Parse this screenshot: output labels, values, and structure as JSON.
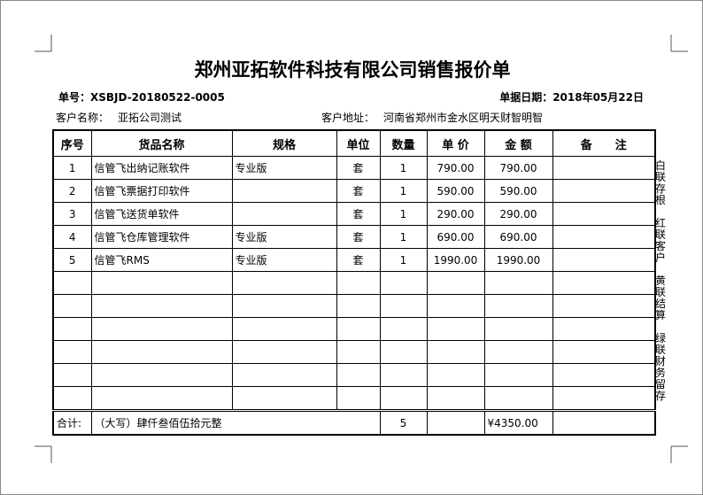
{
  "header": {
    "title": "郑州亚拓软件科技有限公司销售报价单",
    "order_no": "单号：XSBJD-20180522-0005",
    "date": "单据日期：2018年05月22日",
    "customer_name_label": "客户名称：",
    "customer_name": "亚拓公司测试",
    "customer_address_label": "客户地址：",
    "customer_address": "河南省郑州市金水区明天财智明智"
  },
  "table": {
    "columns": [
      "序号",
      "货品名称",
      "规格",
      "单位",
      "数量",
      "单 价",
      "金 额",
      "备　　注"
    ],
    "rows": [
      {
        "no": 1,
        "name": "信管飞出纳记账软件",
        "spec": "专业版",
        "unit": "套",
        "qty": 1,
        "price": "790.00",
        "amount": "790.00"
      },
      {
        "no": 2,
        "name": "信管飞票据打印软件",
        "unit": "套",
        "qty": 1,
        "price": "590.00",
        "amount": "590.00"
      },
      {
        "no": 3,
        "name": "信管飞送货单软件",
        "unit": "套",
        "qty": 1,
        "price": "290.00",
        "amount": "290.00"
      },
      {
        "no": 4,
        "name": "信管飞仓库管理软件",
        "spec": "专业版",
        "unit": "套",
        "qty": 1,
        "price": "690.00",
        "amount": "690.00"
      },
      {
        "no": 5,
        "name": "信管飞RMS",
        "spec": "专业版",
        "unit": "套",
        "qty": 1,
        "price": "1990.00",
        "amount": "1990.00"
      }
    ],
    "total": {
      "label": "合计:",
      "amount_in_words": "（大写）肆仟叁佰伍拾元整",
      "qty": 5,
      "amount": "¥4350.00"
    }
  },
  "side_notes": [
    "白联存根",
    "红联客户",
    "黄联结算",
    "绿联财务留存"
  ]
}
